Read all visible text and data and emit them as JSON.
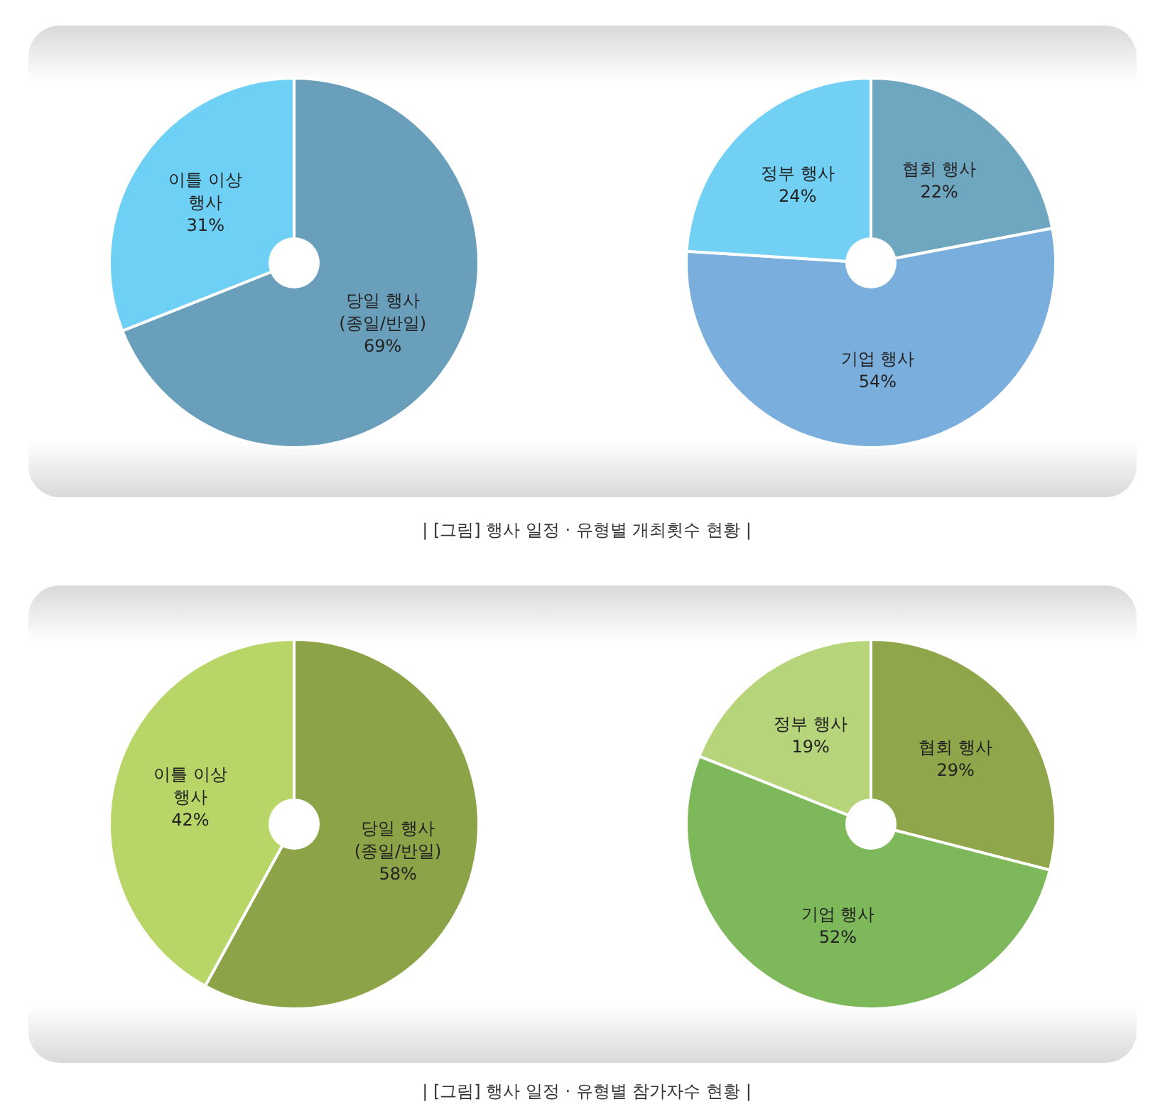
{
  "chart_data": [
    {
      "type": "pie",
      "categories": [
        "당일 행사\n(종일/반일)",
        "이틀 이상\n행사"
      ],
      "values": [
        69,
        31
      ],
      "value_labels": [
        "69%",
        "31%"
      ],
      "colors": [
        "#6a9fbb",
        "#6fd0f5"
      ],
      "annotations": [
        "| [그림] 행사 일정 · 유형별 개최횟수 현황 |"
      ]
    },
    {
      "type": "pie",
      "categories": [
        "협회 행사",
        "기업 행사",
        "정부 행사"
      ],
      "values": [
        22,
        54,
        24
      ],
      "value_labels": [
        "22%",
        "54%",
        "24%"
      ],
      "colors": [
        "#6fa6c0",
        "#7aaedc",
        "#72d0f5"
      ]
    },
    {
      "type": "pie",
      "categories": [
        "당일 행사\n(종일/반일)",
        "이틀 이상\n행사"
      ],
      "values": [
        58,
        42
      ],
      "value_labels": [
        "58%",
        "42%"
      ],
      "colors": [
        "#8ca447",
        "#b8d668"
      ],
      "annotations": [
        "| [그림] 행사 일정 · 유형별 참가자수 현황 |"
      ]
    },
    {
      "type": "pie",
      "categories": [
        "협회 행사",
        "기업 행사",
        "정부 행사"
      ],
      "values": [
        29,
        52,
        19
      ],
      "value_labels": [
        "29%",
        "52%",
        "19%"
      ],
      "colors": [
        "#8fa64a",
        "#7db95a",
        "#b6d47a"
      ]
    }
  ]
}
